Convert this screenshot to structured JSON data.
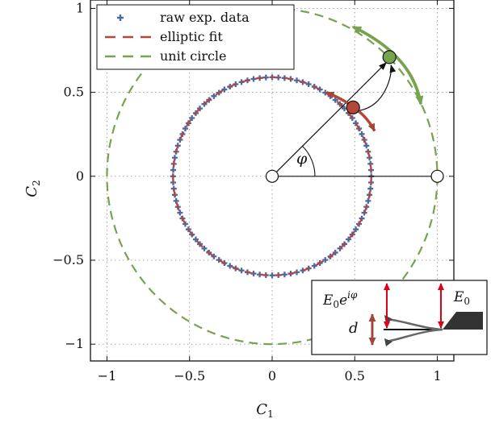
{
  "chart_data": {
    "type": "scatter",
    "xlabel": "C",
    "xlabel_sub": "1",
    "ylabel": "C",
    "ylabel_sub": "2",
    "xlim": [
      -1.1,
      1.1
    ],
    "ylim": [
      -1.1,
      1.05
    ],
    "x_ticks": [
      -1,
      -0.5,
      0,
      0.5,
      1
    ],
    "x_tick_labels": [
      "−1",
      "−0.5",
      "0",
      "0.5",
      "1"
    ],
    "y_ticks": [
      -1,
      -0.5,
      0,
      0.5,
      1
    ],
    "y_tick_labels": [
      "−1",
      "−0.5",
      "0",
      "0.5",
      "1"
    ],
    "grid": true,
    "legend_position": "top-left",
    "legend": [
      {
        "label": "raw exp. data",
        "marker": "plus",
        "color": "#4a6aa5"
      },
      {
        "label": "elliptic fit",
        "style": "dashed",
        "color": "#b5473a"
      },
      {
        "label": "unit circle",
        "style": "dashed",
        "color": "#77a34e"
      }
    ],
    "series": [
      {
        "name": "raw exp. data",
        "shape": "ellipse",
        "center": [
          0.0,
          0.0
        ],
        "semi_axis_x": 0.6,
        "semi_axis_y": 0.59,
        "points": 100
      },
      {
        "name": "elliptic fit",
        "shape": "ellipse",
        "center": [
          0.0,
          0.0
        ],
        "semi_axis_x": 0.6,
        "semi_axis_y": 0.59
      },
      {
        "name": "unit circle",
        "shape": "circle",
        "center": [
          0.0,
          0.0
        ],
        "radius": 1.0
      }
    ],
    "annotations": {
      "phase_symbol": "φ",
      "origin_point": [
        0,
        0
      ],
      "reference_point": [
        1,
        0
      ],
      "unit_circle_point": [
        0.71,
        0.71
      ],
      "ellipse_point": [
        0.49,
        0.41
      ],
      "inset": {
        "label_left": "E",
        "label_left_sub": "0",
        "label_left_exp": "iφ",
        "label_right": "E",
        "label_right_sub": "0",
        "label_d": "d"
      }
    },
    "colors": {
      "data": "#4a6aa5",
      "fit": "#b5473a",
      "unit": "#77a34e",
      "ellipse_marker": "#b5473a",
      "circle_marker": "#77a34e",
      "inset_arrow": "#e0001a",
      "d_arrow": "#a0473a"
    }
  }
}
